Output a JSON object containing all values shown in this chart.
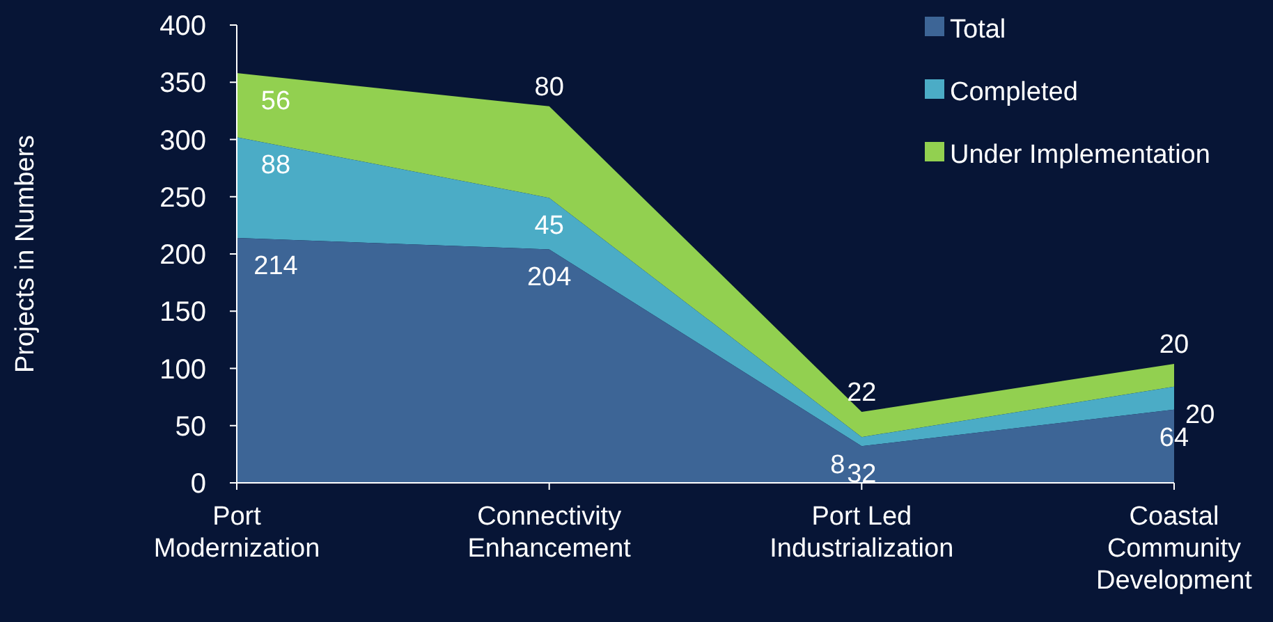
{
  "chart_data": {
    "type": "area",
    "ylabel": "Projects in Numbers",
    "categories": [
      "Port Modernization",
      "Connectivity Enhancement",
      "Port Led Industrialization",
      "Coastal Community Development"
    ],
    "series": [
      {
        "name": "Total",
        "color": "#3d6596",
        "values": [
          214,
          204,
          32,
          64
        ]
      },
      {
        "name": "Completed",
        "color": "#4bacc6",
        "values": [
          88,
          45,
          8,
          20
        ]
      },
      {
        "name": "Under Implementation",
        "color": "#92d050",
        "values": [
          56,
          80,
          22,
          20
        ]
      }
    ],
    "stacked": true,
    "ylim": [
      0,
      400
    ],
    "yticks": [
      0,
      50,
      100,
      150,
      200,
      250,
      300,
      350,
      400
    ],
    "grid": false,
    "legend": "top right",
    "data_labels": true
  }
}
